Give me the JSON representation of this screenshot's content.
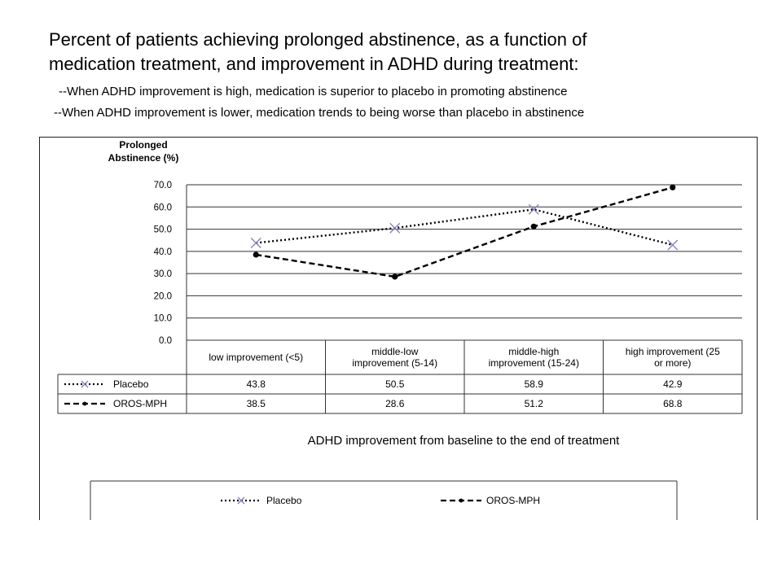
{
  "header": {
    "title_line1": "Percent of patients achieving prolonged abstinence, as a function of",
    "title_line2": "medication treatment, and improvement in ADHD during treatment:",
    "bullet1": "--When ADHD improvement is high, medication is superior to placebo in promoting abstinence",
    "bullet2": "--When ADHD improvement is lower, medication trends to being worse than placebo in abstinence"
  },
  "chart_data": {
    "type": "line",
    "ylabel_line1": "Prolonged",
    "ylabel_line2": "Abstinence (%)",
    "xlabel": "ADHD improvement from baseline to the end of treatment",
    "ylim": [
      0,
      70
    ],
    "yticks": [
      "70.0",
      "60.0",
      "50.0",
      "40.0",
      "30.0",
      "20.0",
      "10.0",
      "0.0"
    ],
    "grid": true,
    "categories": [
      [
        "low improvement (<5)"
      ],
      [
        "middle-low",
        "improvement (5-14)"
      ],
      [
        "middle-high",
        "improvement (15-24)"
      ],
      [
        "high improvement (25",
        "or more)"
      ]
    ],
    "series": [
      {
        "name": "Placebo",
        "values": [
          43.8,
          50.5,
          58.9,
          42.9
        ],
        "labels": [
          "43.8",
          "50.5",
          "58.9",
          "42.9"
        ],
        "color": "#000000",
        "marker": "x",
        "marker_color": "#8f7fbf",
        "dash": "dotted"
      },
      {
        "name": "OROS-MPH",
        "values": [
          38.5,
          28.6,
          51.2,
          68.8
        ],
        "labels": [
          "38.5",
          "28.6",
          "51.2",
          "68.8"
        ],
        "color": "#000000",
        "marker": "dot",
        "marker_color": "#000000",
        "dash": "dashed"
      }
    ],
    "legend_position": "bottom"
  }
}
